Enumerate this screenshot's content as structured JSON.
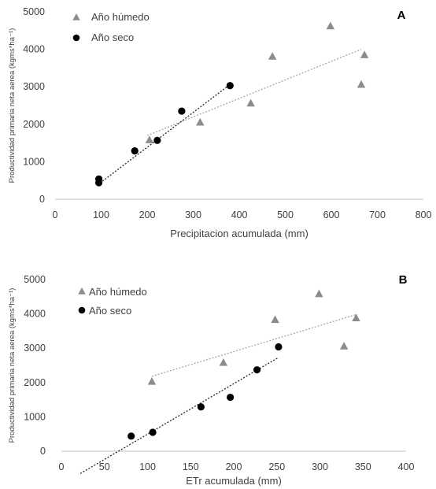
{
  "colors": {
    "humid": "#8c8c8c",
    "dry": "#000000",
    "axis": "#bfbfbf",
    "text": "#404040"
  },
  "chart_data": [
    {
      "type": "scatter",
      "panel_label": "A",
      "xlabel": "Precipitacion acumulada (mm)",
      "ylabel": "Productividad primaria neta aerea (kgms*ha⁻¹)",
      "xlim": [
        0,
        800
      ],
      "ylim": [
        0,
        5000
      ],
      "xticks": [
        "0",
        "100",
        "200",
        "300",
        "400",
        "500",
        "600",
        "700",
        "800"
      ],
      "yticks": [
        "0",
        "1000",
        "2000",
        "3000",
        "4000",
        "5000"
      ],
      "grid": false,
      "legend_position": "top-left",
      "series": [
        {
          "name": "Año húmedo",
          "marker": "triangle",
          "points": [
            [
              205,
              1580
            ],
            [
              315,
              2050
            ],
            [
              425,
              2560
            ],
            [
              472,
              3810
            ],
            [
              598,
              4620
            ],
            [
              665,
              3060
            ],
            [
              672,
              3850
            ]
          ],
          "trendline": [
            [
              200,
              1700
            ],
            [
              665,
              4000
            ]
          ]
        },
        {
          "name": "Año seco",
          "marker": "circle",
          "points": [
            [
              95,
              540
            ],
            [
              95,
              440
            ],
            [
              173,
              1290
            ],
            [
              222,
              1570
            ],
            [
              275,
              2350
            ],
            [
              380,
              3030
            ]
          ],
          "trendline": [
            [
              92,
              380
            ],
            [
              380,
              3060
            ]
          ]
        }
      ]
    },
    {
      "type": "scatter",
      "panel_label": "B",
      "xlabel": "ETr acumulada (mm)",
      "ylabel": "Productividad primaria neta aerea (kgms*ha⁻¹)",
      "xlim": [
        0,
        400
      ],
      "ylim": [
        0,
        5000
      ],
      "xticks": [
        "0",
        "50",
        "100",
        "150",
        "200",
        "250",
        "300",
        "350",
        "400"
      ],
      "yticks": [
        "0",
        "1000",
        "2000",
        "3000",
        "4000",
        "5000"
      ],
      "grid": false,
      "legend_position": "top-left",
      "series": [
        {
          "name": "Año húmedo",
          "marker": "triangle",
          "points": [
            [
              105,
              2030
            ],
            [
              188,
              2580
            ],
            [
              248,
              3830
            ],
            [
              299,
              4580
            ],
            [
              328,
              3060
            ],
            [
              342,
              3880
            ]
          ],
          "trendline": [
            [
              105,
              2180
            ],
            [
              342,
              3980
            ]
          ]
        },
        {
          "name": "Año seco",
          "marker": "circle",
          "points": [
            [
              81,
              440
            ],
            [
              106,
              550
            ],
            [
              162,
              1290
            ],
            [
              196,
              1570
            ],
            [
              227,
              2370
            ],
            [
              252,
              3040
            ]
          ],
          "trendline": [
            [
              22,
              -650
            ],
            [
              252,
              2730
            ]
          ]
        }
      ]
    }
  ]
}
